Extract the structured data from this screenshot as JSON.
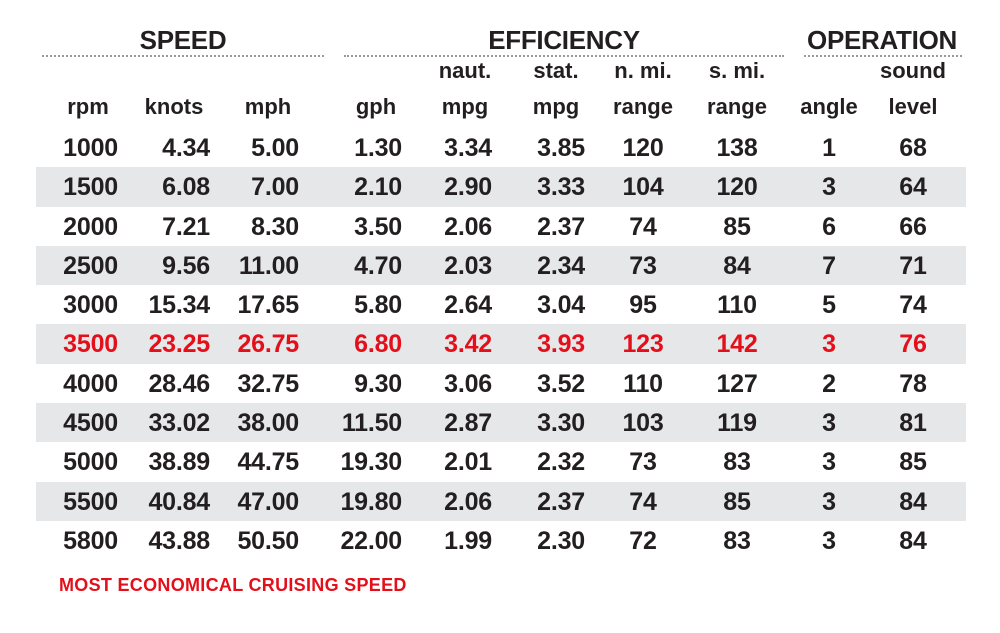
{
  "groups": {
    "speed": "SPEED",
    "efficiency": "EFFICIENCY",
    "operation": "OPERATION"
  },
  "columns": [
    {
      "key": "rpm",
      "line1": "",
      "line2": "rpm"
    },
    {
      "key": "knots",
      "line1": "",
      "line2": "knots"
    },
    {
      "key": "mph",
      "line1": "",
      "line2": "mph"
    },
    {
      "key": "gph",
      "line1": "",
      "line2": "gph"
    },
    {
      "key": "naut_mpg",
      "line1": "naut.",
      "line2": "mpg"
    },
    {
      "key": "stat_mpg",
      "line1": "stat.",
      "line2": "mpg"
    },
    {
      "key": "nmi_range",
      "line1": "n. mi.",
      "line2": "range"
    },
    {
      "key": "smi_range",
      "line1": "s. mi.",
      "line2": "range"
    },
    {
      "key": "angle",
      "line1": "",
      "line2": "angle"
    },
    {
      "key": "sound",
      "line1": "sound",
      "line2": "level"
    }
  ],
  "chart_data": {
    "type": "table",
    "rows": [
      [
        "1000",
        "4.34",
        "5.00",
        "1.30",
        "3.34",
        "3.85",
        "120",
        "138",
        "1",
        "68"
      ],
      [
        "1500",
        "6.08",
        "7.00",
        "2.10",
        "2.90",
        "3.33",
        "104",
        "120",
        "3",
        "64"
      ],
      [
        "2000",
        "7.21",
        "8.30",
        "3.50",
        "2.06",
        "2.37",
        "74",
        "85",
        "6",
        "66"
      ],
      [
        "2500",
        "9.56",
        "11.00",
        "4.70",
        "2.03",
        "2.34",
        "73",
        "84",
        "7",
        "71"
      ],
      [
        "3000",
        "15.34",
        "17.65",
        "5.80",
        "2.64",
        "3.04",
        "95",
        "110",
        "5",
        "74"
      ],
      [
        "3500",
        "23.25",
        "26.75",
        "6.80",
        "3.42",
        "3.93",
        "123",
        "142",
        "3",
        "76"
      ],
      [
        "4000",
        "28.46",
        "32.75",
        "9.30",
        "3.06",
        "3.52",
        "110",
        "127",
        "2",
        "78"
      ],
      [
        "4500",
        "33.02",
        "38.00",
        "11.50",
        "2.87",
        "3.30",
        "103",
        "119",
        "3",
        "81"
      ],
      [
        "5000",
        "38.89",
        "44.75",
        "19.30",
        "2.01",
        "2.32",
        "73",
        "83",
        "3",
        "85"
      ],
      [
        "5500",
        "40.84",
        "47.00",
        "19.80",
        "2.06",
        "2.37",
        "74",
        "85",
        "3",
        "84"
      ],
      [
        "5800",
        "43.88",
        "50.50",
        "22.00",
        "1.99",
        "2.30",
        "72",
        "83",
        "3",
        "84"
      ]
    ],
    "highlight_row": "3500",
    "highlight_color": "#e3101b",
    "shaded_row_color": "#e6e7e8",
    "footnote": "MOST ECONOMICAL CRUISING SPEED"
  }
}
